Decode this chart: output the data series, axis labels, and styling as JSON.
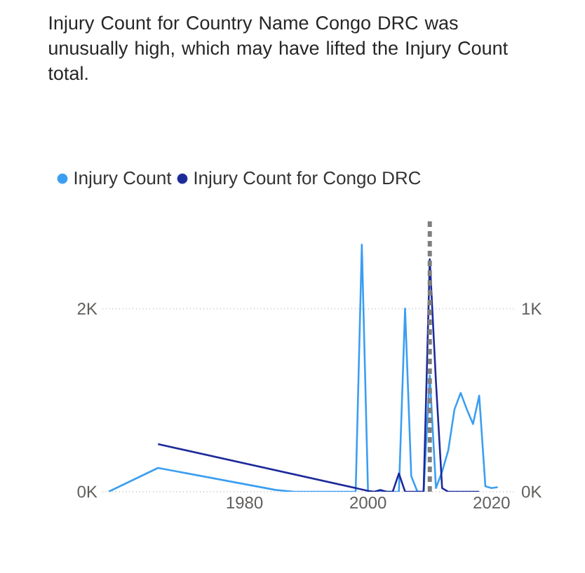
{
  "chart_data": {
    "type": "line",
    "title": "Injury Count for Country Name Congo DRC was unusually high, which may have lifted the Injury Count total.",
    "x": [
      1958,
      1966,
      1985,
      1988,
      1998,
      1999,
      2000,
      2001,
      2002,
      2003,
      2004,
      2005,
      2006,
      2007,
      2008,
      2009,
      2010,
      2011,
      2012,
      2013,
      2014,
      2015,
      2016,
      2017,
      2018,
      2019,
      2020,
      2021
    ],
    "series": [
      {
        "name": "Injury Count",
        "color": "#3a9ef2",
        "values": [
          0,
          260,
          20,
          0,
          0,
          2700,
          0,
          0,
          0,
          0,
          0,
          0,
          2000,
          170,
          0,
          0,
          1270,
          40,
          220,
          455,
          900,
          1080,
          900,
          740,
          1050,
          60,
          40,
          50
        ]
      },
      {
        "name": "Injury Count for Congo DRC",
        "color": "#1d2a9a",
        "axis": "y2",
        "x": [
          1966,
          2000,
          2001,
          2002,
          2003,
          2004,
          2005,
          2006,
          2007,
          2008,
          2009,
          2010,
          2011,
          2012,
          2013,
          2014,
          2015,
          2016,
          2017,
          2018
        ],
        "values": [
          260,
          5,
          0,
          10,
          0,
          0,
          100,
          0,
          0,
          0,
          0,
          1270,
          600,
          20,
          0,
          0,
          0,
          0,
          0,
          0
        ]
      }
    ],
    "xlim": [
      1957,
      2024
    ],
    "xticks": [
      1980,
      2000,
      2020
    ],
    "ylim": [
      0,
      3000
    ],
    "yticks": [
      {
        "value": 0,
        "label": "0K"
      },
      {
        "value": 2000,
        "label": "2K"
      }
    ],
    "y2lim": [
      0,
      1500
    ],
    "y2ticks": [
      {
        "value": 0,
        "label": "0K"
      },
      {
        "value": 1000,
        "label": "1K"
      }
    ],
    "ref_lines": [
      {
        "axis": "x",
        "value": 2010,
        "color": "#7f7f7f",
        "line_style": "dashed"
      }
    ],
    "grid": "y",
    "legend": "top left"
  }
}
